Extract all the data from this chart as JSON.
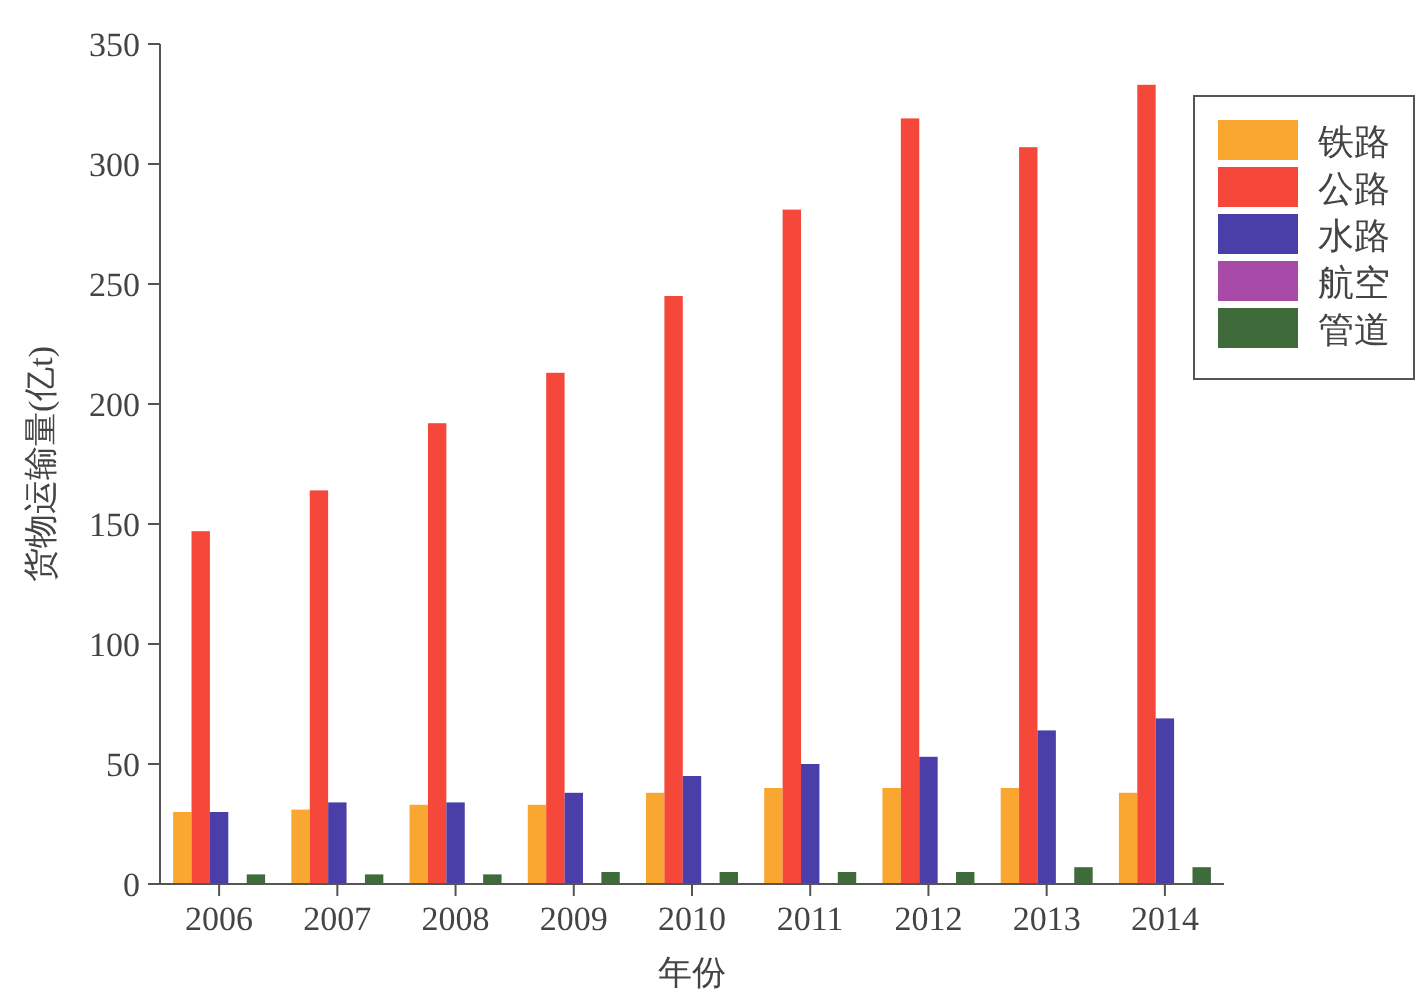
{
  "chart_data": {
    "type": "bar",
    "xlabel": "年份",
    "ylabel": "货物运输量(亿t)",
    "categories": [
      "2006",
      "2007",
      "2008",
      "2009",
      "2010",
      "2011",
      "2012",
      "2013",
      "2014"
    ],
    "ylim": [
      0,
      350
    ],
    "yticks": [
      0,
      50,
      100,
      150,
      200,
      250,
      300,
      350
    ],
    "legend": "right",
    "grid": false,
    "series": [
      {
        "name": "铁路",
        "color": "#f9a730",
        "values": [
          30,
          31,
          33,
          33,
          38,
          40,
          40,
          40,
          38
        ]
      },
      {
        "name": "公路",
        "color": "#f5483a",
        "values": [
          147,
          164,
          192,
          213,
          245,
          281,
          319,
          307,
          333
        ]
      },
      {
        "name": "水路",
        "color": "#4a3fa8",
        "values": [
          30,
          34,
          34,
          38,
          45,
          50,
          53,
          64,
          69
        ]
      },
      {
        "name": "航空",
        "color": "#a74aa8",
        "values": [
          0,
          0,
          0,
          0,
          0,
          0,
          0,
          0,
          0
        ]
      },
      {
        "name": "管道",
        "color": "#3f6b3a",
        "values": [
          4,
          4,
          4,
          5,
          5,
          5,
          5,
          7,
          7
        ]
      }
    ]
  }
}
